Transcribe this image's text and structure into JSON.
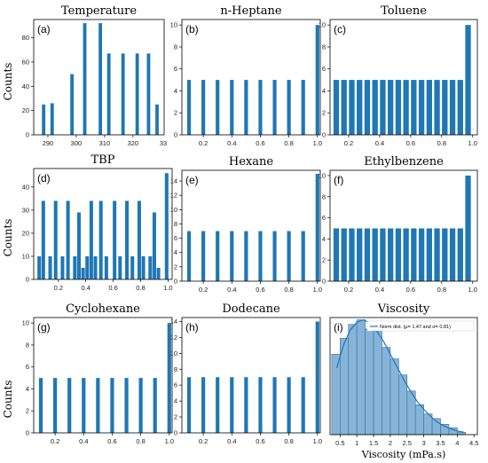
{
  "y_label": "Counts",
  "chart_data": [
    {
      "type": "bar",
      "panel": "(a)",
      "title": "Temperature",
      "xlim": [
        285,
        331
      ],
      "ylim": [
        0,
        95
      ],
      "width": 1.2,
      "xticks": [
        290,
        300,
        310,
        320
      ],
      "xtick_labels": [
        "290",
        "300",
        "310",
        "320"
      ],
      "extra_xtick_label": "33",
      "yticks": [
        0,
        20,
        40,
        60,
        80
      ],
      "ytick_labels": [
        "0",
        "20",
        "40",
        "60",
        "80"
      ],
      "x": [
        288.5,
        291.5,
        298.5,
        303.0,
        308.5,
        311.5,
        316.5,
        321.5,
        325.5,
        328.5
      ],
      "values": [
        25,
        26,
        50,
        92,
        92,
        67,
        67,
        67,
        67,
        25
      ]
    },
    {
      "type": "bar",
      "panel": "(b)",
      "title": "n-Heptane",
      "xlim": [
        0.05,
        1.02
      ],
      "ylim": [
        0,
        10.5
      ],
      "width": 0.026,
      "xticks": [
        0.2,
        0.4,
        0.6,
        0.8,
        1.0
      ],
      "xtick_labels": [
        "0.2",
        "0.4",
        "0.6",
        "0.8",
        "1.0"
      ],
      "yticks": [
        0,
        2,
        4,
        6,
        8,
        10
      ],
      "ytick_labels": [
        "0",
        "2",
        "4",
        "6",
        "8",
        "10"
      ],
      "x": [
        0.1,
        0.2,
        0.3,
        0.4,
        0.5,
        0.6,
        0.7,
        0.8,
        0.9,
        1.0
      ],
      "values": [
        5,
        5,
        5,
        5,
        5,
        5,
        5,
        5,
        5,
        10
      ]
    },
    {
      "type": "bar",
      "panel": "(c)",
      "title": "Toluene",
      "xlim": [
        0.08,
        1.03
      ],
      "ylim": [
        0,
        10.5
      ],
      "width": 0.036,
      "xticks": [
        0.2,
        0.4,
        0.6,
        0.8,
        1.0
      ],
      "xtick_labels": [
        "0.2",
        "0.4",
        "0.6",
        "0.8",
        "1.0"
      ],
      "yticks": [
        0,
        2,
        4,
        6,
        8,
        10
      ],
      "ytick_labels": [
        "0",
        "2",
        "4",
        "6",
        "8",
        "10"
      ],
      "x": [
        0.12,
        0.17,
        0.22,
        0.27,
        0.32,
        0.37,
        0.42,
        0.47,
        0.52,
        0.57,
        0.62,
        0.67,
        0.72,
        0.77,
        0.82,
        0.87,
        0.92,
        0.97
      ],
      "values": [
        5,
        5,
        5,
        5,
        5,
        5,
        5,
        5,
        5,
        5,
        5,
        5,
        5,
        5,
        5,
        5,
        5,
        10
      ]
    },
    {
      "type": "bar",
      "panel": "(d)",
      "title": "TBP",
      "xlim": [
        0.02,
        1.03
      ],
      "ylim": [
        0,
        48
      ],
      "width": 0.026,
      "xticks": [
        0.2,
        0.4,
        0.6,
        0.8,
        1.0
      ],
      "xtick_labels": [
        "0.2",
        "0.4",
        "0.6",
        "0.8",
        "1.0"
      ],
      "yticks": [
        0,
        10,
        20,
        30,
        40
      ],
      "ytick_labels": [
        "0",
        "10",
        "20",
        "30",
        "40"
      ],
      "x": [
        0.06,
        0.09,
        0.14,
        0.18,
        0.23,
        0.27,
        0.32,
        0.35,
        0.38,
        0.41,
        0.44,
        0.47,
        0.51,
        0.55,
        0.61,
        0.65,
        0.7,
        0.74,
        0.79,
        0.82,
        0.87,
        0.9,
        0.93,
        0.99
      ],
      "values": [
        10,
        34,
        10,
        34,
        10,
        34,
        10,
        29,
        5,
        10,
        34,
        10,
        34,
        10,
        34,
        10,
        34,
        10,
        34,
        10,
        10,
        29,
        5,
        46
      ]
    },
    {
      "type": "bar",
      "panel": "(e)",
      "title": "Hexane",
      "xlim": [
        0.05,
        1.02
      ],
      "ylim": [
        0,
        15.5
      ],
      "width": 0.026,
      "xticks": [
        0.2,
        0.4,
        0.6,
        0.8,
        1.0
      ],
      "xtick_labels": [
        "0.2",
        "0.4",
        "0.6",
        "0.8",
        "1.0"
      ],
      "yticks": [
        0,
        2,
        4,
        6,
        8,
        10,
        12,
        14
      ],
      "ytick_labels": [
        "0",
        "2",
        "4",
        "6",
        "8",
        "10",
        "12",
        "14"
      ],
      "x": [
        0.1,
        0.2,
        0.3,
        0.4,
        0.5,
        0.6,
        0.7,
        0.8,
        0.9,
        1.0
      ],
      "values": [
        7,
        7,
        7,
        7,
        7,
        7,
        7,
        7,
        7,
        15
      ]
    },
    {
      "type": "bar",
      "panel": "(f)",
      "title": "Ethylbenzene",
      "xlim": [
        0.08,
        1.03
      ],
      "ylim": [
        0,
        10.5
      ],
      "width": 0.036,
      "xticks": [
        0.2,
        0.4,
        0.6,
        0.8,
        1.0
      ],
      "xtick_labels": [
        "0.2",
        "0.4",
        "0.6",
        "0.8",
        "1.0"
      ],
      "yticks": [
        0,
        2,
        4,
        6,
        8,
        10
      ],
      "ytick_labels": [
        "0",
        "2",
        "4",
        "6",
        "8",
        "10"
      ],
      "x": [
        0.12,
        0.17,
        0.22,
        0.27,
        0.32,
        0.37,
        0.42,
        0.47,
        0.52,
        0.57,
        0.62,
        0.67,
        0.72,
        0.77,
        0.82,
        0.87,
        0.92,
        0.97
      ],
      "values": [
        5,
        5,
        5,
        5,
        5,
        5,
        5,
        5,
        5,
        5,
        5,
        5,
        5,
        5,
        5,
        5,
        5,
        10
      ]
    },
    {
      "type": "bar",
      "panel": "(g)",
      "title": "Cyclohexane",
      "xlim": [
        0.05,
        1.02
      ],
      "ylim": [
        0,
        10.5
      ],
      "width": 0.026,
      "xticks": [
        0.2,
        0.4,
        0.6,
        0.8,
        1.0
      ],
      "xtick_labels": [
        "0.2",
        "0.4",
        "0.6",
        "0.8",
        "1.0"
      ],
      "yticks": [
        0,
        2,
        4,
        6,
        8,
        10
      ],
      "ytick_labels": [
        "0",
        "2",
        "4",
        "6",
        "8",
        "10"
      ],
      "x": [
        0.1,
        0.2,
        0.3,
        0.4,
        0.5,
        0.6,
        0.7,
        0.8,
        0.9,
        1.0
      ],
      "values": [
        5,
        5,
        5,
        5,
        5,
        5,
        5,
        5,
        5,
        10
      ]
    },
    {
      "type": "bar",
      "panel": "(h)",
      "title": "Dodecane",
      "xlim": [
        0.05,
        1.02
      ],
      "ylim": [
        0,
        14.5
      ],
      "width": 0.026,
      "xticks": [
        0.2,
        0.4,
        0.6,
        0.8,
        1.0
      ],
      "xtick_labels": [
        "0.2",
        "0.4",
        "0.6",
        "0.8",
        "1.0"
      ],
      "yticks": [
        0,
        2,
        4,
        6,
        8,
        10,
        12,
        14
      ],
      "ytick_labels": [
        "0",
        "2",
        "4",
        "6",
        "8",
        "10",
        "12",
        "14"
      ],
      "x": [
        0.1,
        0.2,
        0.3,
        0.4,
        0.5,
        0.6,
        0.7,
        0.8,
        0.9,
        1.0
      ],
      "values": [
        7,
        7,
        7,
        7,
        7,
        7,
        7,
        7,
        7,
        14
      ]
    },
    {
      "type": "bar",
      "panel": "(i)",
      "title": "Viscosity",
      "xlabel": "Viscosity (mPa.s)",
      "xlim": [
        0.2,
        4.6
      ],
      "ylim": [
        0,
        5.1
      ],
      "width": 0.25,
      "style": "histogram",
      "xticks": [
        0.5,
        1.0,
        1.5,
        2.0,
        2.5,
        3.0,
        3.5,
        4.0,
        4.5
      ],
      "xtick_labels": [
        "0.5",
        "1",
        "1.5",
        "2",
        "2.5",
        "3",
        "3.5",
        "4",
        "4.5"
      ],
      "x": [
        0.375,
        0.625,
        0.875,
        1.125,
        1.375,
        1.625,
        1.875,
        2.125,
        2.375,
        2.625,
        2.875,
        3.125,
        3.375,
        3.625,
        3.875,
        4.125
      ],
      "values": [
        3.5,
        4.2,
        4.8,
        5.0,
        4.6,
        4.5,
        3.8,
        3.3,
        2.6,
        1.9,
        1.3,
        0.9,
        0.7,
        0.45,
        0.3,
        0.1
      ],
      "curve": {
        "x": [
          0.4,
          0.6,
          0.8,
          1.0,
          1.2,
          1.4,
          1.6,
          1.8,
          2.0,
          2.2,
          2.4,
          2.6,
          2.8,
          3.0,
          3.2,
          3.4,
          3.6,
          3.8,
          4.0,
          4.2
        ],
        "y": [
          2.9,
          3.9,
          4.55,
          4.9,
          5.0,
          4.85,
          4.5,
          4.05,
          3.5,
          2.95,
          2.4,
          1.9,
          1.45,
          1.1,
          0.8,
          0.55,
          0.38,
          0.25,
          0.16,
          0.1
        ]
      },
      "legend_label": "Norm dist. (μ= 1.47 and σ= 0.81)",
      "legend_position": "top-right"
    }
  ]
}
